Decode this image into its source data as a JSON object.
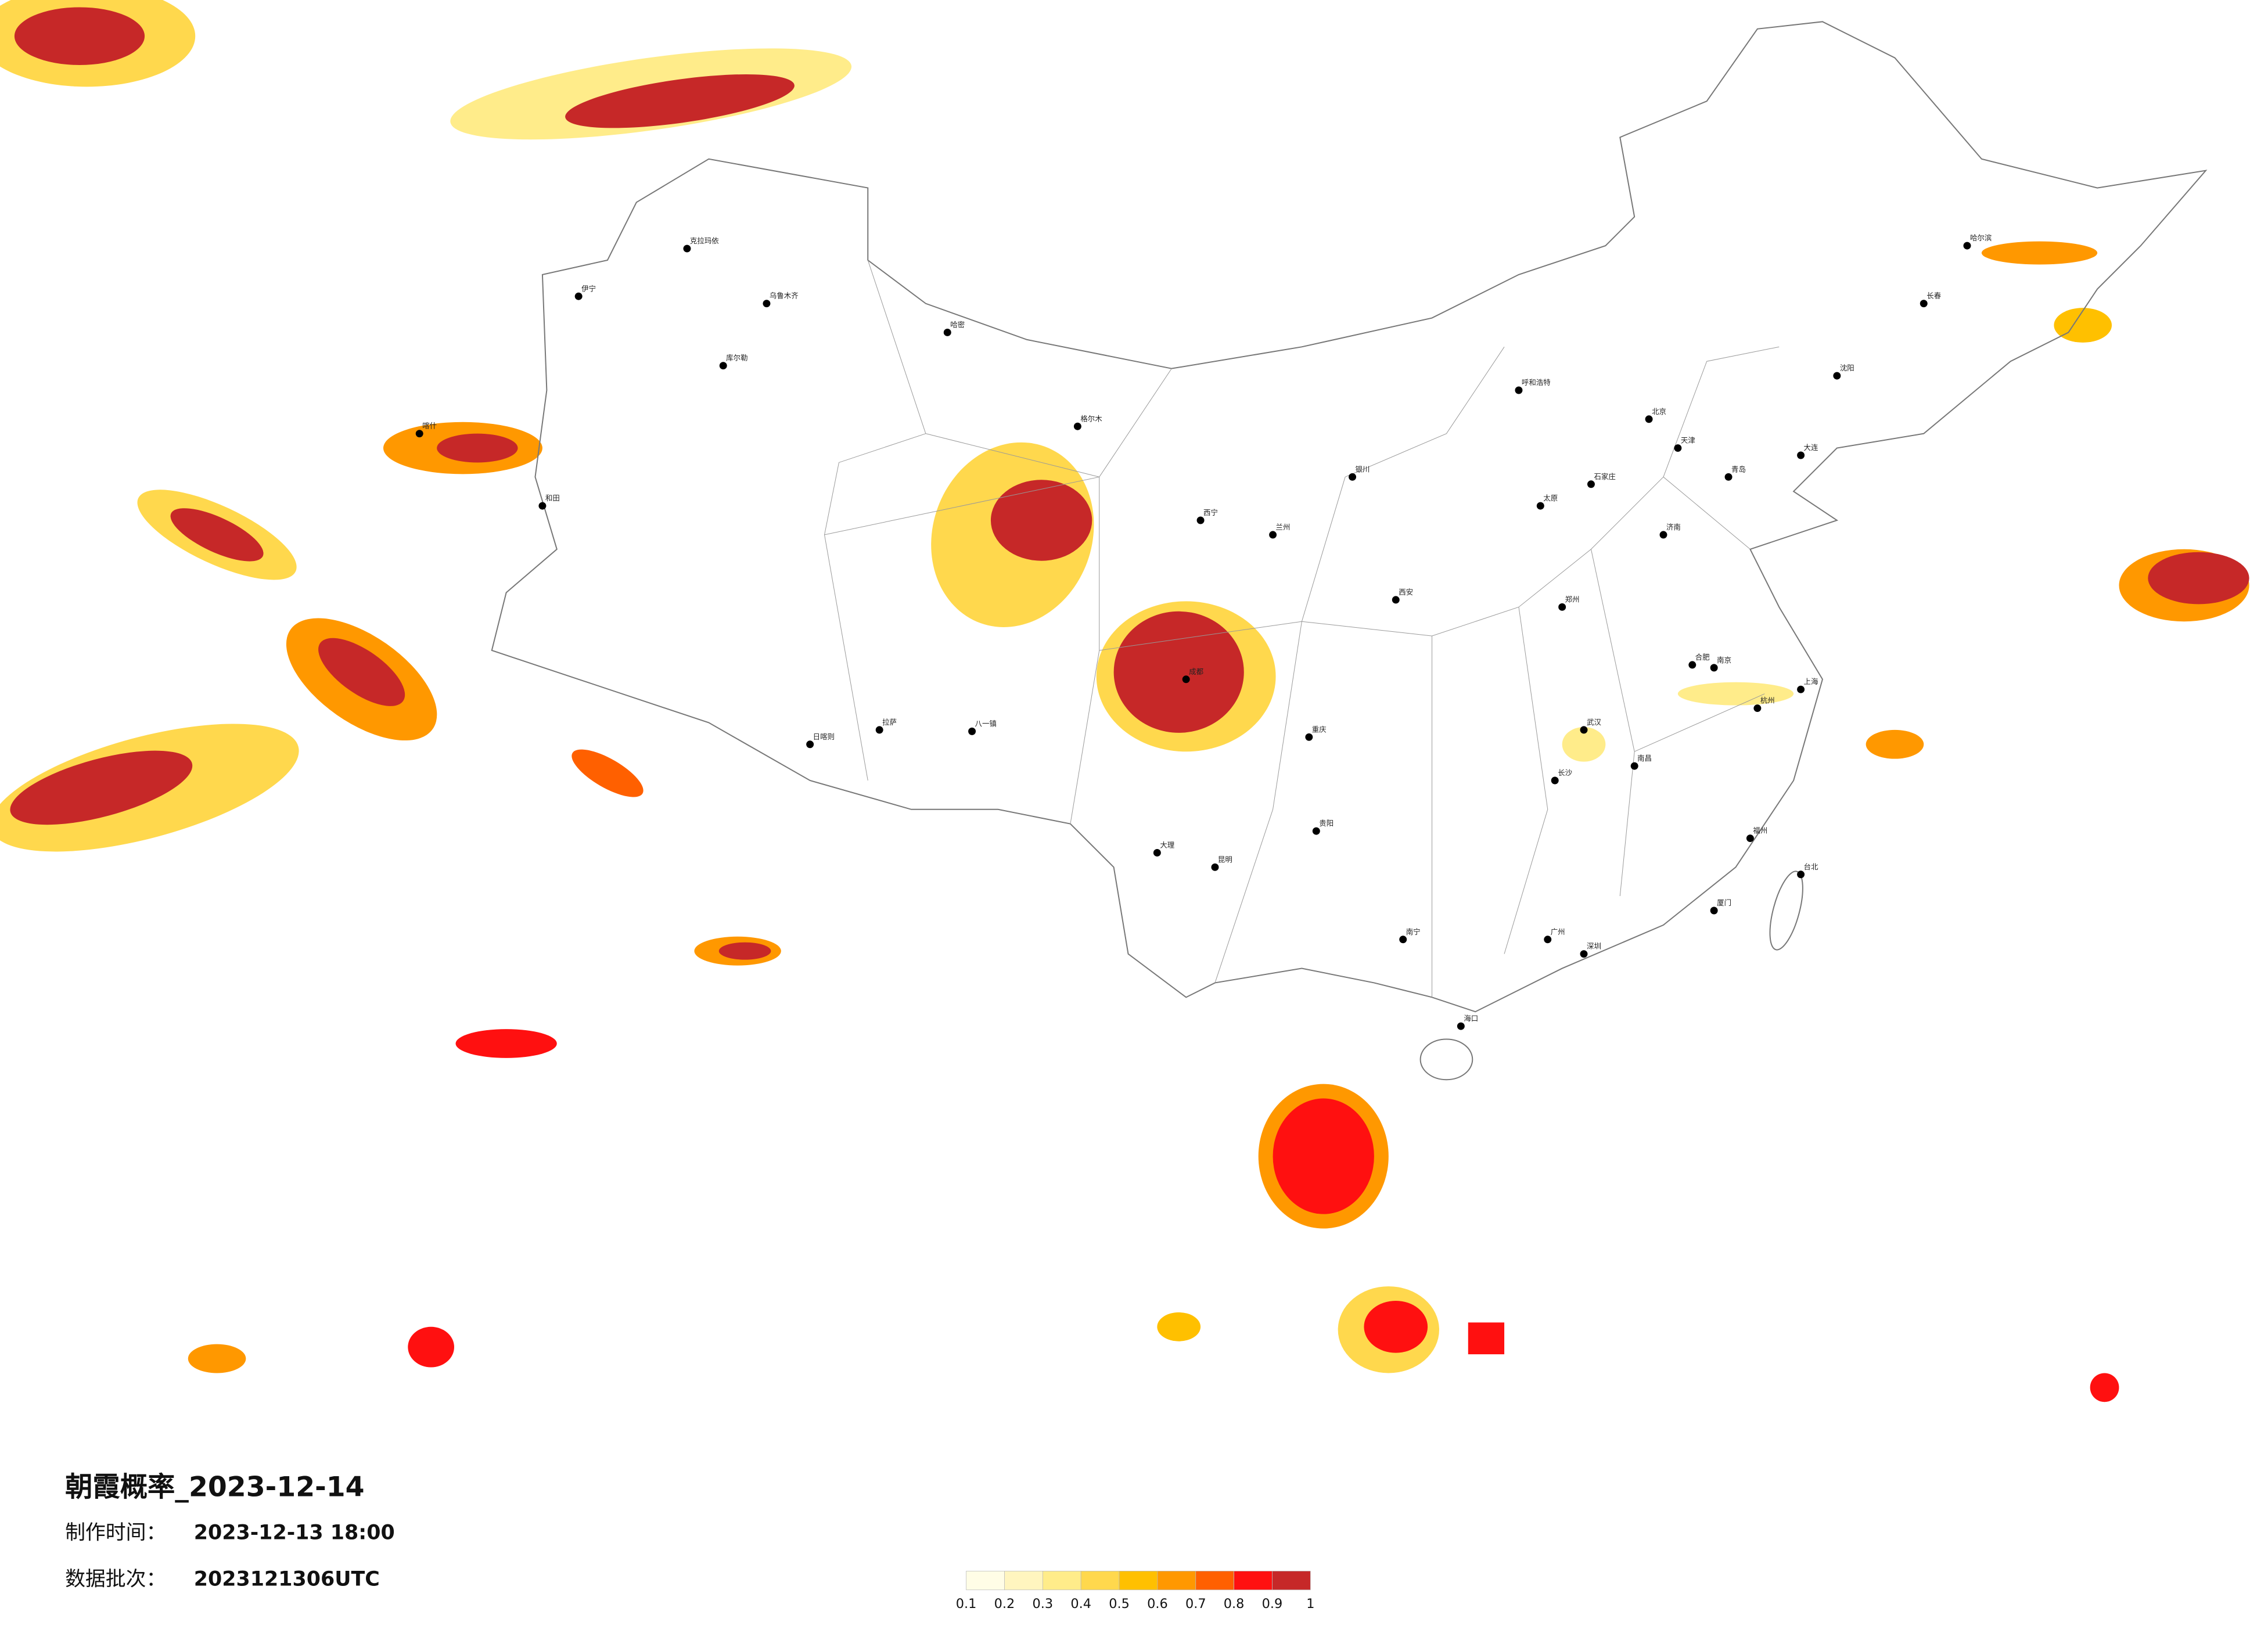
{
  "title": "朝霞概率_2023-12-14",
  "info": [
    {
      "label": "制作时间：",
      "value": "2023-12-13 18:00"
    },
    {
      "label": "数据批次：",
      "value": "2023121306UTC"
    }
  ],
  "legend": {
    "colors": [
      "#fffde6",
      "#fff5bf",
      "#ffec8a",
      "#ffd84d",
      "#ffc000",
      "#ff9800",
      "#ff6000",
      "#ff1010",
      "#c62828"
    ],
    "ticks": [
      0.1,
      0.2,
      0.3,
      0.4,
      0.5,
      0.6,
      0.7,
      0.8,
      0.9,
      1
    ]
  },
  "cities": [
    "北京",
    "上海",
    "广州",
    "成都",
    "武汉",
    "西安",
    "乌鲁木齐",
    "拉萨",
    "哈尔滨",
    "昆明",
    "呼和浩特",
    "兰州",
    "重庆",
    "南京",
    "杭州",
    "长沙",
    "郑州",
    "济南",
    "沈阳",
    "长春",
    "西宁",
    "银川",
    "太原",
    "石家庄",
    "南昌",
    "福州",
    "南宁",
    "贵阳",
    "海口",
    "台北",
    "喀什",
    "和田",
    "伊宁",
    "克拉玛依",
    "库尔勒",
    "哈密",
    "格尔木",
    "日喀则",
    "八一镇",
    "大理",
    "厦门",
    "深圳",
    "青岛",
    "大连",
    "合肥",
    "天津"
  ]
}
